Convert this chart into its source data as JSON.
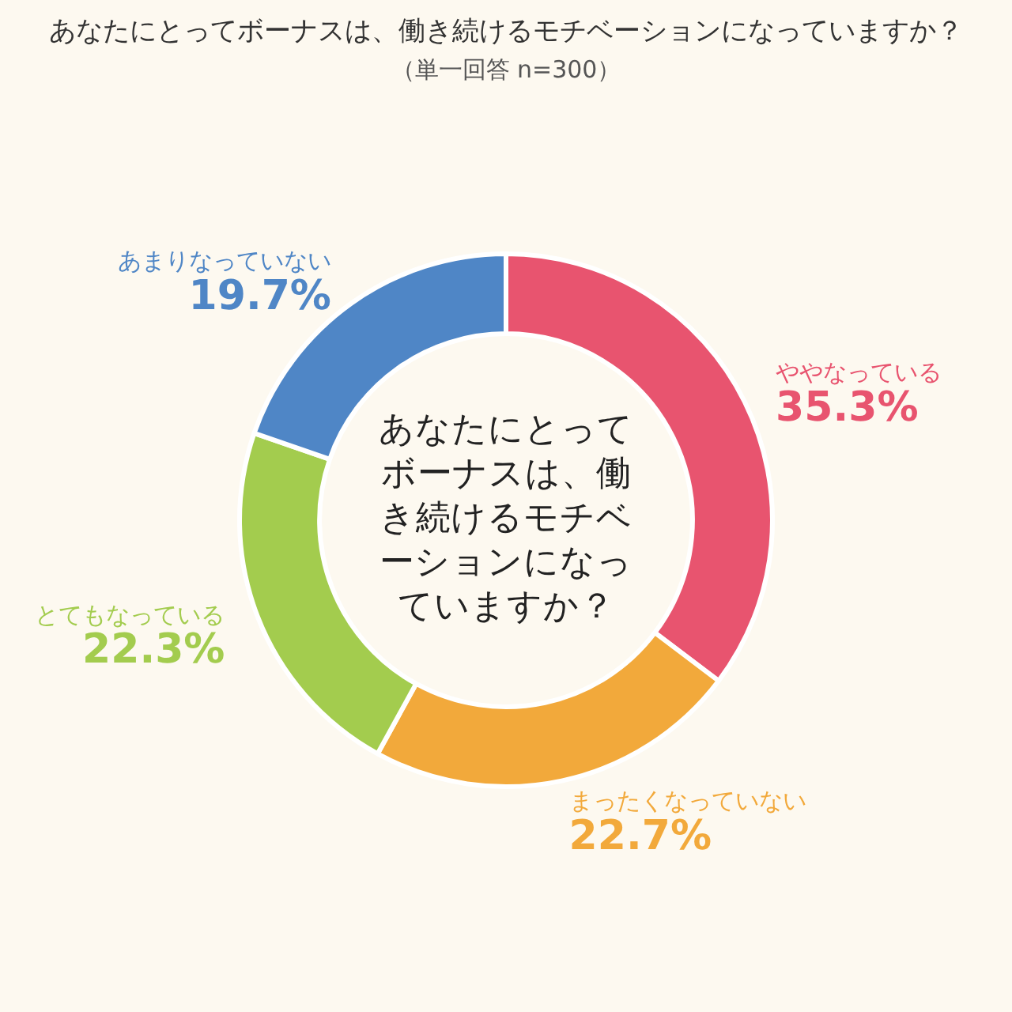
{
  "chart_data": {
    "type": "donut",
    "title": "あなたにとってボーナスは、働き続けるモチベーションになっていますか？",
    "subtitle": "（単一回答 n=300）",
    "categories": [
      "ややなっている",
      "まったくなっていない",
      "とてもなっている",
      "あまりなっていない"
    ],
    "values": [
      35.3,
      22.7,
      22.3,
      19.7
    ],
    "colors": [
      "#e8546f",
      "#f2a93b",
      "#a3cc4e",
      "#4f86c6"
    ],
    "value_labels": [
      "35.3%",
      "22.7%",
      "22.3%",
      "19.7%"
    ],
    "annotations": [
      "あなたにとってボーナスは、働き続けるモチベーションになっていますか？"
    ],
    "legend": false
  }
}
